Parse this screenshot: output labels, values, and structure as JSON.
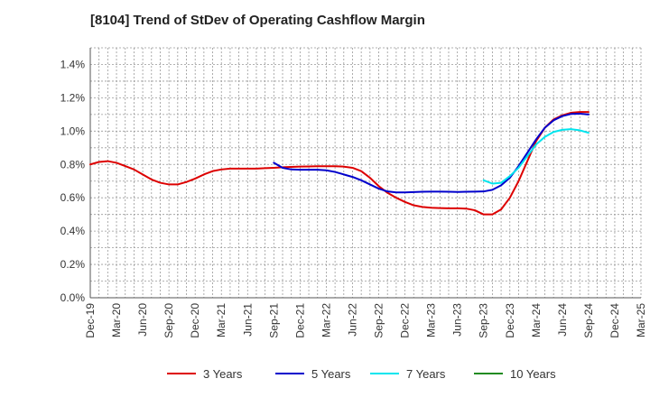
{
  "chart_data": {
    "type": "line",
    "title": "[8104]  Trend of StDev of Operating Cashflow Margin",
    "xlabel": "",
    "ylabel": "",
    "x_tick_labels": [
      "Dec-19",
      "Mar-20",
      "Jun-20",
      "Sep-20",
      "Dec-20",
      "Mar-21",
      "Jun-21",
      "Sep-21",
      "Dec-21",
      "Mar-22",
      "Jun-22",
      "Sep-22",
      "Dec-22",
      "Mar-23",
      "Jun-23",
      "Sep-23",
      "Dec-23",
      "Mar-24",
      "Jun-24",
      "Sep-24",
      "Dec-24",
      "Mar-25"
    ],
    "y_tick_labels": [
      "0.0%",
      "0.2%",
      "0.4%",
      "0.6%",
      "0.8%",
      "1.0%",
      "1.2%",
      "1.4%"
    ],
    "ylim": [
      0,
      1.5
    ],
    "y_unit": "%",
    "grid": true,
    "legend_position": "bottom",
    "series": [
      {
        "name": "3 Years",
        "color": "#dd0000",
        "values": [
          [
            "Dec-19",
            0.8
          ],
          [
            "Jan-20",
            0.815
          ],
          [
            "Feb-20",
            0.82
          ],
          [
            "Mar-20",
            0.81
          ],
          [
            "Apr-20",
            0.79
          ],
          [
            "May-20",
            0.77
          ],
          [
            "Jun-20",
            0.74
          ],
          [
            "Jul-20",
            0.71
          ],
          [
            "Aug-20",
            0.69
          ],
          [
            "Sep-20",
            0.68
          ],
          [
            "Oct-20",
            0.68
          ],
          [
            "Nov-20",
            0.695
          ],
          [
            "Dec-20",
            0.715
          ],
          [
            "Jan-21",
            0.74
          ],
          [
            "Feb-21",
            0.76
          ],
          [
            "Mar-21",
            0.77
          ],
          [
            "Apr-21",
            0.775
          ],
          [
            "May-21",
            0.775
          ],
          [
            "Jun-21",
            0.775
          ],
          [
            "Jul-21",
            0.775
          ],
          [
            "Aug-21",
            0.778
          ],
          [
            "Sep-21",
            0.78
          ],
          [
            "Oct-21",
            0.783
          ],
          [
            "Nov-21",
            0.785
          ],
          [
            "Dec-21",
            0.787
          ],
          [
            "Jan-22",
            0.788
          ],
          [
            "Feb-22",
            0.789
          ],
          [
            "Mar-22",
            0.789
          ],
          [
            "Apr-22",
            0.789
          ],
          [
            "May-22",
            0.787
          ],
          [
            "Jun-22",
            0.78
          ],
          [
            "Jul-22",
            0.76
          ],
          [
            "Aug-22",
            0.72
          ],
          [
            "Sep-22",
            0.67
          ],
          [
            "Oct-22",
            0.63
          ],
          [
            "Nov-22",
            0.6
          ],
          [
            "Dec-22",
            0.575
          ],
          [
            "Jan-23",
            0.555
          ],
          [
            "Feb-23",
            0.545
          ],
          [
            "Mar-23",
            0.54
          ],
          [
            "Apr-23",
            0.538
          ],
          [
            "May-23",
            0.537
          ],
          [
            "Jun-23",
            0.537
          ],
          [
            "Jul-23",
            0.535
          ],
          [
            "Aug-23",
            0.525
          ],
          [
            "Sep-23",
            0.5
          ],
          [
            "Oct-23",
            0.5
          ],
          [
            "Nov-23",
            0.53
          ],
          [
            "Dec-23",
            0.6
          ],
          [
            "Jan-24",
            0.7
          ],
          [
            "Feb-24",
            0.82
          ],
          [
            "Mar-24",
            0.94
          ],
          [
            "Apr-24",
            1.02
          ],
          [
            "May-24",
            1.07
          ],
          [
            "Jun-24",
            1.095
          ],
          [
            "Jul-24",
            1.11
          ],
          [
            "Aug-24",
            1.115
          ],
          [
            "Sep-24",
            1.115
          ]
        ]
      },
      {
        "name": "5 Years",
        "color": "#0000cc",
        "values": [
          [
            "Sep-21",
            0.81
          ],
          [
            "Oct-21",
            0.78
          ],
          [
            "Nov-21",
            0.77
          ],
          [
            "Dec-21",
            0.768
          ],
          [
            "Jan-22",
            0.768
          ],
          [
            "Feb-22",
            0.768
          ],
          [
            "Mar-22",
            0.765
          ],
          [
            "Apr-22",
            0.755
          ],
          [
            "May-22",
            0.74
          ],
          [
            "Jun-22",
            0.725
          ],
          [
            "Jul-22",
            0.705
          ],
          [
            "Aug-22",
            0.68
          ],
          [
            "Sep-22",
            0.655
          ],
          [
            "Oct-22",
            0.638
          ],
          [
            "Nov-22",
            0.632
          ],
          [
            "Dec-22",
            0.632
          ],
          [
            "Jan-23",
            0.634
          ],
          [
            "Feb-23",
            0.636
          ],
          [
            "Mar-23",
            0.637
          ],
          [
            "Apr-23",
            0.637
          ],
          [
            "May-23",
            0.636
          ],
          [
            "Jun-23",
            0.635
          ],
          [
            "Jul-23",
            0.636
          ],
          [
            "Aug-23",
            0.637
          ],
          [
            "Sep-23",
            0.638
          ],
          [
            "Oct-23",
            0.648
          ],
          [
            "Nov-23",
            0.675
          ],
          [
            "Dec-23",
            0.72
          ],
          [
            "Jan-24",
            0.79
          ],
          [
            "Feb-24",
            0.87
          ],
          [
            "Mar-24",
            0.95
          ],
          [
            "Apr-24",
            1.02
          ],
          [
            "May-24",
            1.065
          ],
          [
            "Jun-24",
            1.09
          ],
          [
            "Jul-24",
            1.103
          ],
          [
            "Aug-24",
            1.105
          ],
          [
            "Sep-24",
            1.1
          ]
        ]
      },
      {
        "name": "7 Years",
        "color": "#00e5ee",
        "values": [
          [
            "Sep-23",
            0.705
          ],
          [
            "Oct-23",
            0.685
          ],
          [
            "Nov-23",
            0.69
          ],
          [
            "Dec-23",
            0.73
          ],
          [
            "Jan-24",
            0.78
          ],
          [
            "Feb-24",
            0.85
          ],
          [
            "Mar-24",
            0.92
          ],
          [
            "Apr-24",
            0.965
          ],
          [
            "May-24",
            0.995
          ],
          [
            "Jun-24",
            1.008
          ],
          [
            "Jul-24",
            1.012
          ],
          [
            "Aug-24",
            1.005
          ],
          [
            "Sep-24",
            0.99
          ]
        ]
      },
      {
        "name": "10 Years",
        "color": "#228b22",
        "values": []
      }
    ]
  }
}
